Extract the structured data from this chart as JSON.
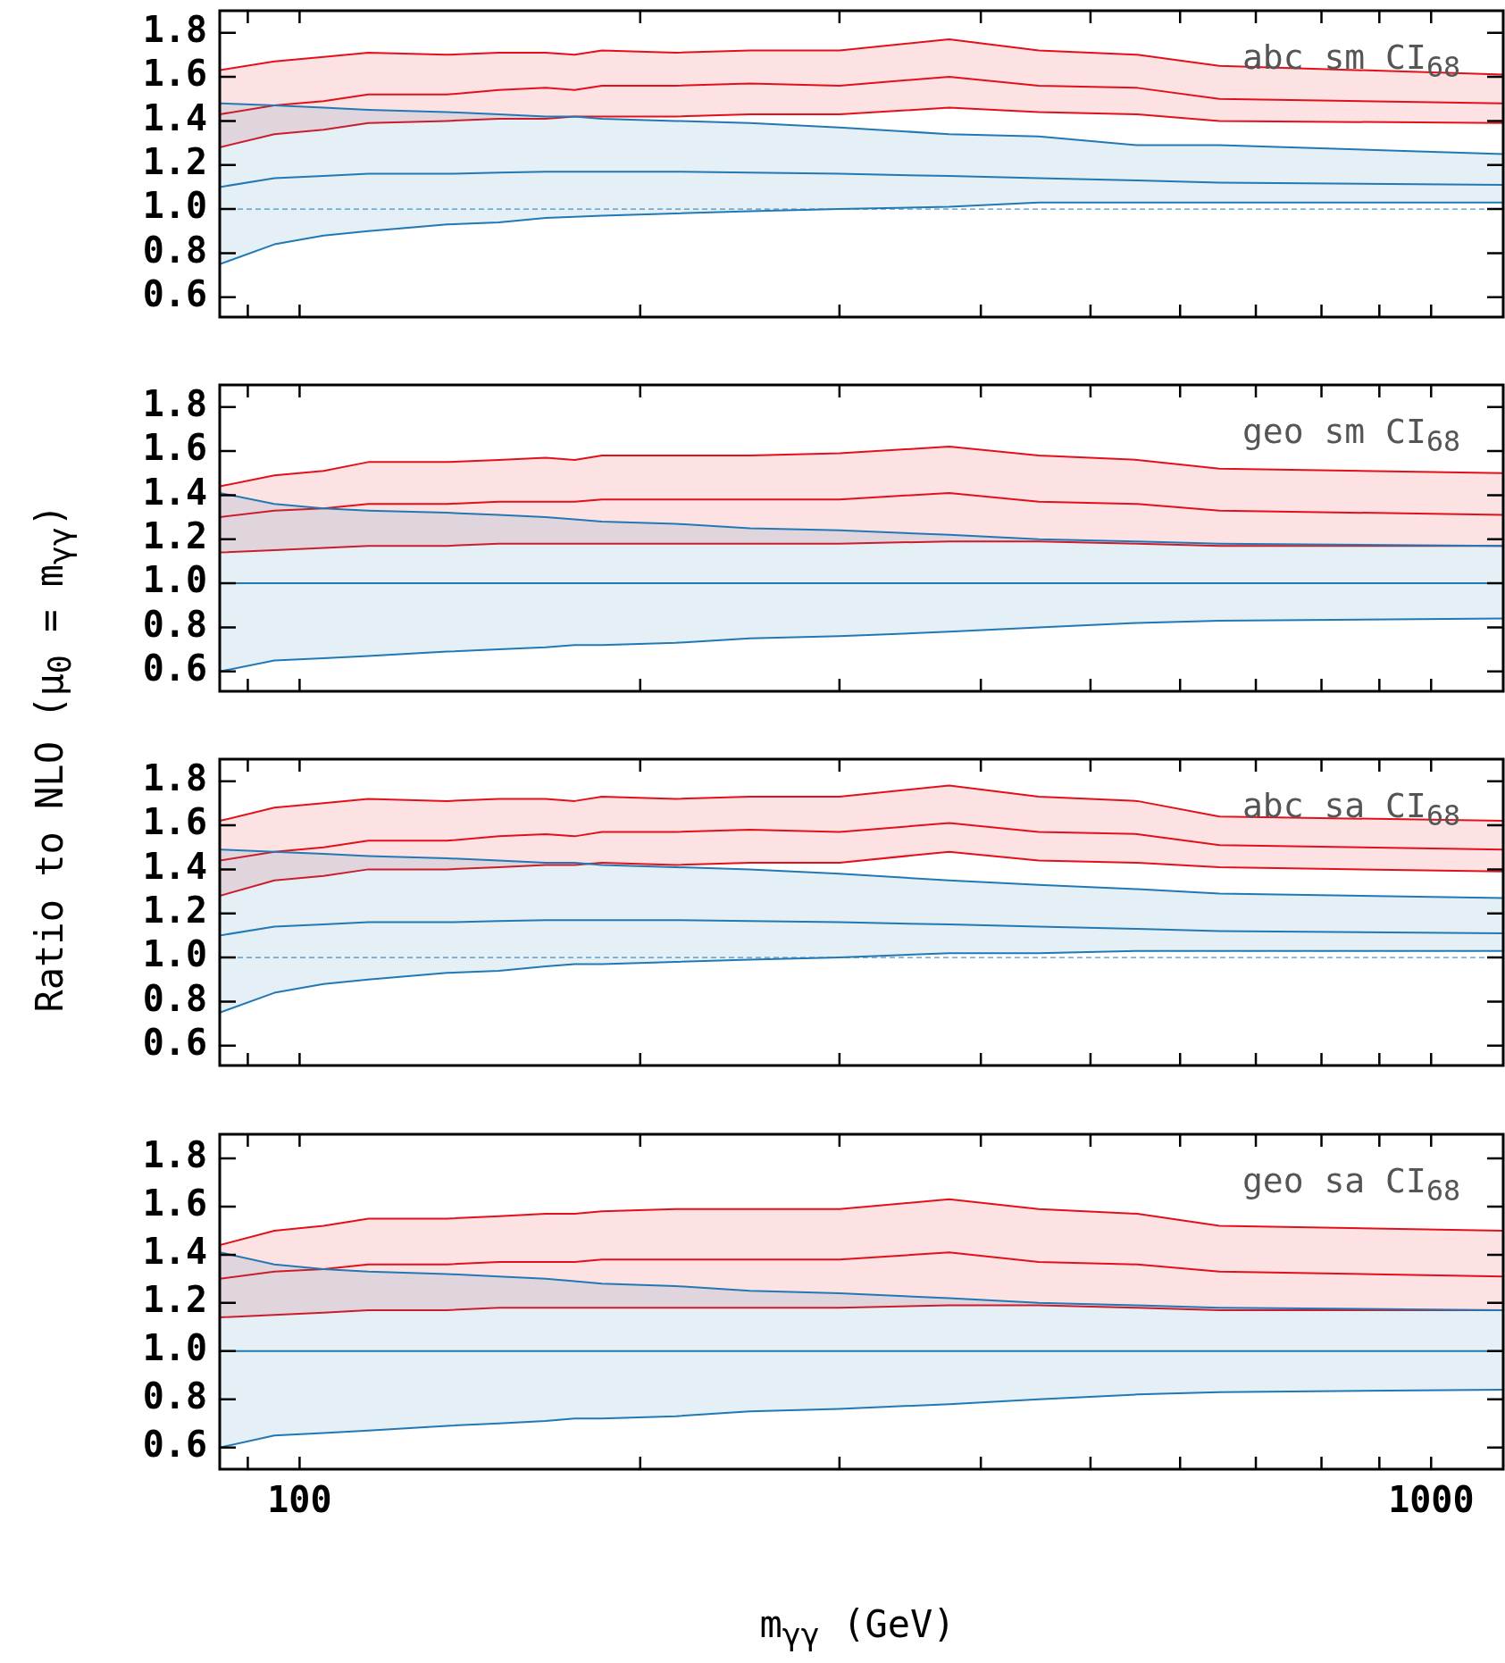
{
  "chart_data": [
    {
      "type": "line",
      "ylabel": "Ratio to NLO (μ$_{0}$ = m$_{γγ}$)",
      "annotations": [
        "abc sm CI$_{68}$"
      ],
      "log": "x",
      "marker": "none",
      "tick_labels": "y",
      "xlim": [
        85,
        1158
      ],
      "xticks": [
        {
          "value": 90,
          "label": null
        },
        {
          "value": 100,
          "label": null
        },
        {
          "value": 200,
          "label": null
        },
        {
          "value": 300,
          "label": null
        },
        {
          "value": 400,
          "label": null
        },
        {
          "value": 500,
          "label": null
        },
        {
          "value": 600,
          "label": null
        },
        {
          "value": 700,
          "label": null
        },
        {
          "value": 800,
          "label": null
        },
        {
          "value": 900,
          "label": null
        },
        {
          "value": 1000,
          "label": null
        }
      ],
      "ylim": [
        0.51,
        1.9
      ],
      "yticks": [
        {
          "value": 0.6,
          "label": "0.6"
        },
        {
          "value": 0.8,
          "label": "0.8"
        },
        {
          "value": 1,
          "label": "1.0"
        },
        {
          "value": 1.2,
          "label": "1.2"
        },
        {
          "value": 1.4,
          "label": "1.4"
        },
        {
          "value": 1.6,
          "label": "1.6"
        },
        {
          "value": 1.8,
          "label": "1.8"
        }
      ],
      "ref_lines": [
        {
          "axis": "y",
          "value": 1,
          "color": "#2279b5",
          "line_style": "dashed"
        }
      ],
      "x": [
        85,
        95,
        105,
        115,
        135,
        150,
        165,
        175,
        185,
        215,
        250,
        300,
        375,
        450,
        550,
        650,
        1158
      ],
      "series": [
        {
          "color": "#2279b5",
          "values": [
            1.1,
            1.14,
            1.15,
            1.16,
            1.16,
            1.165,
            1.17,
            1.17,
            1.17,
            1.17,
            1.165,
            1.16,
            1.15,
            1.14,
            1.13,
            1.12,
            1.11
          ],
          "lower": [
            0.75,
            0.84,
            0.88,
            0.9,
            0.93,
            0.94,
            0.96,
            0.965,
            0.97,
            0.98,
            0.99,
            1.0,
            1.01,
            1.03,
            1.03,
            1.03,
            1.03
          ],
          "upper": [
            1.48,
            1.47,
            1.46,
            1.45,
            1.44,
            1.43,
            1.42,
            1.42,
            1.41,
            1.4,
            1.39,
            1.37,
            1.34,
            1.33,
            1.29,
            1.29,
            1.25
          ]
        },
        {
          "color": "#2279b5",
          "values": [
            0.75,
            0.84,
            0.88,
            0.9,
            0.93,
            0.94,
            0.96,
            0.965,
            0.97,
            0.98,
            0.99,
            1.0,
            1.01,
            1.03,
            1.03,
            1.03,
            1.03
          ]
        },
        {
          "color": "#2279b5",
          "values": [
            1.48,
            1.47,
            1.46,
            1.45,
            1.44,
            1.43,
            1.42,
            1.42,
            1.41,
            1.4,
            1.39,
            1.37,
            1.34,
            1.33,
            1.29,
            1.29,
            1.25
          ]
        },
        {
          "color": "#e3111b",
          "values": [
            1.43,
            1.47,
            1.49,
            1.52,
            1.52,
            1.54,
            1.55,
            1.54,
            1.56,
            1.56,
            1.57,
            1.56,
            1.6,
            1.56,
            1.55,
            1.5,
            1.48
          ],
          "lower": [
            1.28,
            1.34,
            1.36,
            1.39,
            1.4,
            1.41,
            1.41,
            1.42,
            1.42,
            1.42,
            1.43,
            1.43,
            1.46,
            1.44,
            1.43,
            1.4,
            1.39
          ],
          "upper": [
            1.63,
            1.67,
            1.69,
            1.71,
            1.7,
            1.71,
            1.71,
            1.7,
            1.72,
            1.71,
            1.72,
            1.72,
            1.77,
            1.72,
            1.7,
            1.65,
            1.61
          ]
        },
        {
          "color": "#e3111b",
          "values": [
            1.28,
            1.34,
            1.36,
            1.39,
            1.4,
            1.41,
            1.41,
            1.42,
            1.42,
            1.42,
            1.43,
            1.43,
            1.46,
            1.44,
            1.43,
            1.4,
            1.39
          ]
        },
        {
          "color": "#e3111b",
          "values": [
            1.63,
            1.67,
            1.69,
            1.71,
            1.7,
            1.71,
            1.71,
            1.7,
            1.72,
            1.71,
            1.72,
            1.72,
            1.77,
            1.72,
            1.7,
            1.65,
            1.61
          ]
        }
      ]
    },
    {
      "type": "line",
      "annotations": [
        "geo sm CI$_{68}$"
      ],
      "log": "x",
      "marker": "none",
      "tick_labels": "y",
      "xlim": [
        85,
        1158
      ],
      "xticks": [
        {
          "value": 90,
          "label": null
        },
        {
          "value": 100,
          "label": null
        },
        {
          "value": 200,
          "label": null
        },
        {
          "value": 300,
          "label": null
        },
        {
          "value": 400,
          "label": null
        },
        {
          "value": 500,
          "label": null
        },
        {
          "value": 600,
          "label": null
        },
        {
          "value": 700,
          "label": null
        },
        {
          "value": 800,
          "label": null
        },
        {
          "value": 900,
          "label": null
        },
        {
          "value": 1000,
          "label": null
        }
      ],
      "ylim": [
        0.51,
        1.9
      ],
      "yticks": [
        {
          "value": 0.6,
          "label": "0.6"
        },
        {
          "value": 0.8,
          "label": "0.8"
        },
        {
          "value": 1,
          "label": "1.0"
        },
        {
          "value": 1.2,
          "label": "1.2"
        },
        {
          "value": 1.4,
          "label": "1.4"
        },
        {
          "value": 1.6,
          "label": "1.6"
        },
        {
          "value": 1.8,
          "label": "1.8"
        }
      ],
      "x": [
        85,
        95,
        105,
        115,
        135,
        150,
        165,
        175,
        185,
        215,
        250,
        300,
        375,
        450,
        550,
        650,
        1158
      ],
      "series": [
        {
          "color": "#2279b5",
          "values": [
            1,
            1,
            1,
            1,
            1,
            1,
            1,
            1,
            1,
            1,
            1,
            1,
            1,
            1,
            1,
            1,
            1
          ],
          "lower": [
            0.6,
            0.65,
            0.66,
            0.67,
            0.69,
            0.7,
            0.71,
            0.72,
            0.72,
            0.73,
            0.75,
            0.76,
            0.78,
            0.8,
            0.82,
            0.83,
            0.84
          ],
          "upper": [
            1.41,
            1.36,
            1.34,
            1.33,
            1.32,
            1.31,
            1.3,
            1.29,
            1.28,
            1.27,
            1.25,
            1.24,
            1.22,
            1.2,
            1.19,
            1.18,
            1.17
          ]
        },
        {
          "color": "#2279b5",
          "values": [
            0.6,
            0.65,
            0.66,
            0.67,
            0.69,
            0.7,
            0.71,
            0.72,
            0.72,
            0.73,
            0.75,
            0.76,
            0.78,
            0.8,
            0.82,
            0.83,
            0.84
          ]
        },
        {
          "color": "#2279b5",
          "values": [
            1.41,
            1.36,
            1.34,
            1.33,
            1.32,
            1.31,
            1.3,
            1.29,
            1.28,
            1.27,
            1.25,
            1.24,
            1.22,
            1.2,
            1.19,
            1.18,
            1.17
          ]
        },
        {
          "color": "#e3111b",
          "values": [
            1.3,
            1.33,
            1.34,
            1.36,
            1.36,
            1.37,
            1.37,
            1.37,
            1.38,
            1.38,
            1.38,
            1.38,
            1.41,
            1.37,
            1.36,
            1.33,
            1.31
          ],
          "lower": [
            1.14,
            1.15,
            1.16,
            1.17,
            1.17,
            1.18,
            1.18,
            1.18,
            1.18,
            1.18,
            1.18,
            1.18,
            1.19,
            1.19,
            1.18,
            1.17,
            1.17
          ],
          "upper": [
            1.44,
            1.49,
            1.51,
            1.55,
            1.55,
            1.56,
            1.57,
            1.56,
            1.58,
            1.58,
            1.58,
            1.59,
            1.62,
            1.58,
            1.56,
            1.52,
            1.5
          ]
        },
        {
          "color": "#e3111b",
          "values": [
            1.14,
            1.15,
            1.16,
            1.17,
            1.17,
            1.18,
            1.18,
            1.18,
            1.18,
            1.18,
            1.18,
            1.18,
            1.19,
            1.19,
            1.18,
            1.17,
            1.17
          ]
        },
        {
          "color": "#e3111b",
          "values": [
            1.44,
            1.49,
            1.51,
            1.55,
            1.55,
            1.56,
            1.57,
            1.56,
            1.58,
            1.58,
            1.58,
            1.59,
            1.62,
            1.58,
            1.56,
            1.52,
            1.5
          ]
        }
      ]
    },
    {
      "type": "line",
      "annotations": [
        "abc sa CI$_{68}$"
      ],
      "log": "x",
      "marker": "none",
      "tick_labels": "y",
      "xlim": [
        85,
        1158
      ],
      "xticks": [
        {
          "value": 90,
          "label": null
        },
        {
          "value": 100,
          "label": null
        },
        {
          "value": 200,
          "label": null
        },
        {
          "value": 300,
          "label": null
        },
        {
          "value": 400,
          "label": null
        },
        {
          "value": 500,
          "label": null
        },
        {
          "value": 600,
          "label": null
        },
        {
          "value": 700,
          "label": null
        },
        {
          "value": 800,
          "label": null
        },
        {
          "value": 900,
          "label": null
        },
        {
          "value": 1000,
          "label": null
        }
      ],
      "ylim": [
        0.51,
        1.9
      ],
      "yticks": [
        {
          "value": 0.6,
          "label": "0.6"
        },
        {
          "value": 0.8,
          "label": "0.8"
        },
        {
          "value": 1,
          "label": "1.0"
        },
        {
          "value": 1.2,
          "label": "1.2"
        },
        {
          "value": 1.4,
          "label": "1.4"
        },
        {
          "value": 1.6,
          "label": "1.6"
        },
        {
          "value": 1.8,
          "label": "1.8"
        }
      ],
      "ref_lines": [
        {
          "axis": "y",
          "value": 1,
          "color": "#2279b5",
          "line_style": "dashed"
        }
      ],
      "x": [
        85,
        95,
        105,
        115,
        135,
        150,
        165,
        175,
        185,
        215,
        250,
        300,
        375,
        450,
        550,
        650,
        1158
      ],
      "series": [
        {
          "color": "#2279b5",
          "values": [
            1.1,
            1.14,
            1.15,
            1.16,
            1.16,
            1.165,
            1.17,
            1.17,
            1.17,
            1.17,
            1.165,
            1.16,
            1.15,
            1.14,
            1.13,
            1.12,
            1.11
          ],
          "lower": [
            0.75,
            0.84,
            0.88,
            0.9,
            0.93,
            0.94,
            0.96,
            0.97,
            0.97,
            0.98,
            0.99,
            1.0,
            1.02,
            1.02,
            1.03,
            1.03,
            1.03
          ],
          "upper": [
            1.49,
            1.48,
            1.47,
            1.46,
            1.45,
            1.44,
            1.43,
            1.43,
            1.42,
            1.41,
            1.4,
            1.38,
            1.35,
            1.33,
            1.31,
            1.29,
            1.27
          ]
        },
        {
          "color": "#2279b5",
          "values": [
            0.75,
            0.84,
            0.88,
            0.9,
            0.93,
            0.94,
            0.96,
            0.97,
            0.97,
            0.98,
            0.99,
            1.0,
            1.02,
            1.02,
            1.03,
            1.03,
            1.03
          ]
        },
        {
          "color": "#2279b5",
          "values": [
            1.49,
            1.48,
            1.47,
            1.46,
            1.45,
            1.44,
            1.43,
            1.43,
            1.42,
            1.41,
            1.4,
            1.38,
            1.35,
            1.33,
            1.31,
            1.29,
            1.27
          ]
        },
        {
          "color": "#e3111b",
          "values": [
            1.44,
            1.48,
            1.5,
            1.53,
            1.53,
            1.55,
            1.56,
            1.55,
            1.57,
            1.57,
            1.58,
            1.57,
            1.61,
            1.57,
            1.56,
            1.51,
            1.49
          ],
          "lower": [
            1.28,
            1.35,
            1.37,
            1.4,
            1.4,
            1.41,
            1.42,
            1.42,
            1.43,
            1.42,
            1.43,
            1.43,
            1.48,
            1.44,
            1.43,
            1.41,
            1.39
          ],
          "upper": [
            1.62,
            1.68,
            1.7,
            1.72,
            1.71,
            1.72,
            1.72,
            1.71,
            1.73,
            1.72,
            1.73,
            1.73,
            1.78,
            1.73,
            1.71,
            1.64,
            1.62
          ]
        },
        {
          "color": "#e3111b",
          "values": [
            1.28,
            1.35,
            1.37,
            1.4,
            1.4,
            1.41,
            1.42,
            1.42,
            1.43,
            1.42,
            1.43,
            1.43,
            1.48,
            1.44,
            1.43,
            1.41,
            1.39
          ]
        },
        {
          "color": "#e3111b",
          "values": [
            1.62,
            1.68,
            1.7,
            1.72,
            1.71,
            1.72,
            1.72,
            1.71,
            1.73,
            1.72,
            1.73,
            1.73,
            1.78,
            1.73,
            1.71,
            1.64,
            1.62
          ]
        }
      ]
    },
    {
      "type": "line",
      "annotations": [
        "geo sa CI$_{68}$"
      ],
      "xlabel": "m$_{γγ}$ (GeV)",
      "log": "x",
      "marker": "none",
      "xlim": [
        85,
        1158
      ],
      "xticks": [
        {
          "value": 90,
          "label": null
        },
        {
          "value": 100,
          "label": "100"
        },
        {
          "value": 200,
          "label": null
        },
        {
          "value": 300,
          "label": null
        },
        {
          "value": 400,
          "label": null
        },
        {
          "value": 500,
          "label": null
        },
        {
          "value": 600,
          "label": null
        },
        {
          "value": 700,
          "label": null
        },
        {
          "value": 800,
          "label": null
        },
        {
          "value": 900,
          "label": null
        },
        {
          "value": 1000,
          "label": "1000"
        }
      ],
      "ylim": [
        0.51,
        1.9
      ],
      "yticks": [
        {
          "value": 0.6,
          "label": "0.6"
        },
        {
          "value": 0.8,
          "label": "0.8"
        },
        {
          "value": 1,
          "label": "1.0"
        },
        {
          "value": 1.2,
          "label": "1.2"
        },
        {
          "value": 1.4,
          "label": "1.4"
        },
        {
          "value": 1.6,
          "label": "1.6"
        },
        {
          "value": 1.8,
          "label": "1.8"
        }
      ],
      "x": [
        85,
        95,
        105,
        115,
        135,
        150,
        165,
        175,
        185,
        215,
        250,
        300,
        375,
        450,
        550,
        650,
        1158
      ],
      "series": [
        {
          "color": "#2279b5",
          "values": [
            1,
            1,
            1,
            1,
            1,
            1,
            1,
            1,
            1,
            1,
            1,
            1,
            1,
            1,
            1,
            1,
            1
          ],
          "lower": [
            0.6,
            0.65,
            0.66,
            0.67,
            0.69,
            0.7,
            0.71,
            0.72,
            0.72,
            0.73,
            0.75,
            0.76,
            0.78,
            0.8,
            0.82,
            0.83,
            0.84
          ],
          "upper": [
            1.41,
            1.36,
            1.34,
            1.33,
            1.32,
            1.31,
            1.3,
            1.29,
            1.28,
            1.27,
            1.25,
            1.24,
            1.22,
            1.2,
            1.19,
            1.18,
            1.17
          ]
        },
        {
          "color": "#2279b5",
          "values": [
            0.6,
            0.65,
            0.66,
            0.67,
            0.69,
            0.7,
            0.71,
            0.72,
            0.72,
            0.73,
            0.75,
            0.76,
            0.78,
            0.8,
            0.82,
            0.83,
            0.84
          ]
        },
        {
          "color": "#2279b5",
          "values": [
            1.41,
            1.36,
            1.34,
            1.33,
            1.32,
            1.31,
            1.3,
            1.29,
            1.28,
            1.27,
            1.25,
            1.24,
            1.22,
            1.2,
            1.19,
            1.18,
            1.17
          ]
        },
        {
          "color": "#e3111b",
          "values": [
            1.3,
            1.33,
            1.34,
            1.36,
            1.36,
            1.37,
            1.37,
            1.37,
            1.38,
            1.38,
            1.38,
            1.38,
            1.41,
            1.37,
            1.36,
            1.33,
            1.31
          ],
          "lower": [
            1.14,
            1.15,
            1.16,
            1.17,
            1.17,
            1.18,
            1.18,
            1.18,
            1.18,
            1.18,
            1.18,
            1.18,
            1.19,
            1.19,
            1.18,
            1.17,
            1.17
          ],
          "upper": [
            1.44,
            1.5,
            1.52,
            1.55,
            1.55,
            1.56,
            1.57,
            1.57,
            1.58,
            1.59,
            1.59,
            1.59,
            1.63,
            1.59,
            1.57,
            1.52,
            1.5
          ]
        },
        {
          "color": "#e3111b",
          "values": [
            1.14,
            1.15,
            1.16,
            1.17,
            1.17,
            1.18,
            1.18,
            1.18,
            1.18,
            1.18,
            1.18,
            1.18,
            1.19,
            1.19,
            1.18,
            1.17,
            1.17
          ]
        },
        {
          "color": "#e3111b",
          "values": [
            1.44,
            1.5,
            1.52,
            1.55,
            1.55,
            1.56,
            1.57,
            1.57,
            1.58,
            1.59,
            1.59,
            1.59,
            1.63,
            1.59,
            1.57,
            1.52,
            1.5
          ]
        }
      ]
    }
  ]
}
